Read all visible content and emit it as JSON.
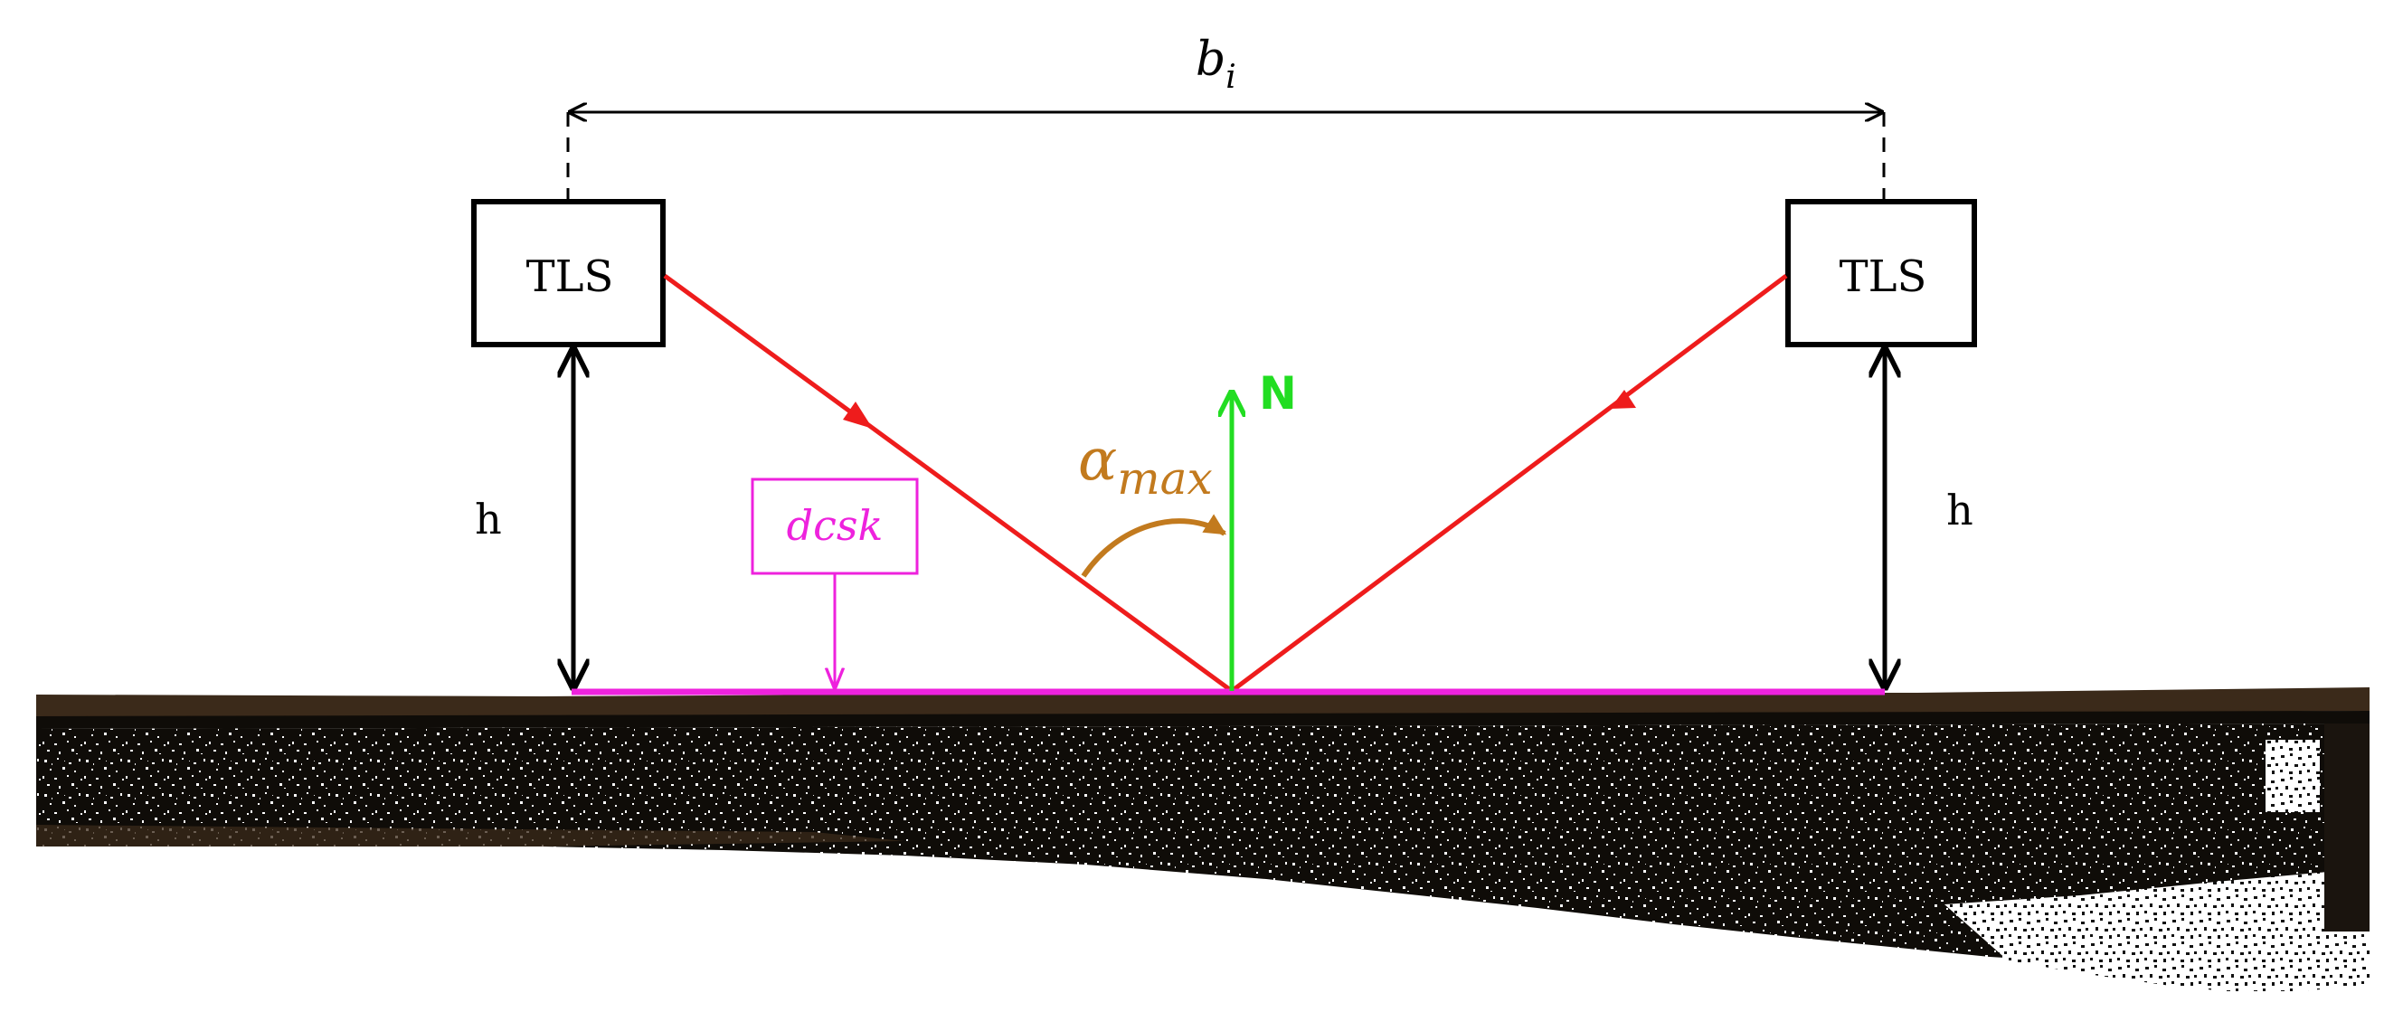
{
  "labels": {
    "baseline_main": "b",
    "baseline_sub": "i",
    "tls_left": "TLS",
    "tls_right": "TLS",
    "height_left": "h",
    "height_right": "h",
    "dcsk": "dcsk",
    "alpha_main": "α",
    "alpha_sub": "max",
    "normal": "N"
  },
  "colors": {
    "beam": "#ee1c1c",
    "normal": "#22dd22",
    "dcsk": "#ee22dd",
    "angle": "#c27a1e",
    "dimension": "#000000",
    "ground_dark": "#0f0c08",
    "ground_brown": "#3b2a1a",
    "ground_points": "#ffffff"
  }
}
